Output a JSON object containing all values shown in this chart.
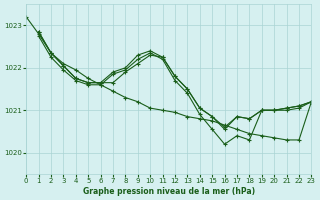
{
  "bg_color": "#d6f0f0",
  "grid_color": "#aad4d4",
  "line_color": "#1a5e1a",
  "xlabel": "Graphe pression niveau de la mer (hPa)",
  "xlim": [
    0,
    23
  ],
  "ylim": [
    1019.5,
    1023.5
  ],
  "yticks": [
    1020,
    1021,
    1022,
    1023
  ],
  "xticks": [
    0,
    1,
    2,
    3,
    4,
    5,
    6,
    7,
    8,
    9,
    10,
    11,
    12,
    13,
    14,
    15,
    16,
    17,
    18,
    19,
    20,
    21,
    22,
    23
  ],
  "series": [
    {
      "x": [
        0,
        1,
        2,
        3,
        4,
        5,
        6,
        7,
        8,
        9,
        10,
        11,
        12,
        13,
        14,
        15,
        16,
        17,
        18,
        19,
        20,
        21,
        22,
        23
      ],
      "y": [
        1023.2,
        1022.8,
        1022.35,
        1022.1,
        1021.95,
        1021.75,
        1021.6,
        1021.45,
        1021.3,
        1021.2,
        1021.05,
        1021.0,
        1020.95,
        1020.85,
        1020.8,
        1020.75,
        1020.65,
        1020.55,
        1020.45,
        1020.4,
        1020.35,
        1020.3,
        1020.3,
        1021.2
      ]
    },
    {
      "x": [
        1,
        2,
        3,
        4,
        5,
        6,
        7,
        8,
        9,
        10,
        11,
        12,
        13,
        14,
        15,
        16,
        17,
        18,
        19,
        20,
        21,
        22,
        23
      ],
      "y": [
        1022.85,
        1022.35,
        1022.05,
        1021.75,
        1021.65,
        1021.65,
        1021.65,
        1021.9,
        1022.1,
        1022.3,
        1022.25,
        1021.8,
        1021.5,
        1021.05,
        1020.85,
        1020.55,
        1020.85,
        1020.8,
        1021.0,
        1021.0,
        1021.05,
        1021.1,
        1021.2
      ]
    },
    {
      "x": [
        1,
        2,
        3,
        4,
        5,
        6,
        7,
        8,
        9,
        10,
        11,
        12,
        13,
        14,
        15,
        16,
        17,
        18,
        19,
        20,
        21,
        22,
        23
      ],
      "y": [
        1022.85,
        1022.35,
        1022.05,
        1021.75,
        1021.65,
        1021.65,
        1021.9,
        1022.0,
        1022.3,
        1022.4,
        1022.25,
        1021.8,
        1021.5,
        1021.05,
        1020.85,
        1020.6,
        1020.85,
        1020.8,
        1021.0,
        1021.0,
        1021.05,
        1021.1,
        1021.2
      ]
    },
    {
      "x": [
        1,
        2,
        3,
        4,
        5,
        6,
        7,
        8,
        9,
        10,
        11,
        12,
        13,
        14,
        15,
        16,
        17,
        18,
        19,
        20,
        21,
        22,
        23
      ],
      "y": [
        1022.75,
        1022.25,
        1021.95,
        1021.7,
        1021.6,
        1021.6,
        1021.85,
        1021.95,
        1022.2,
        1022.35,
        1022.2,
        1021.7,
        1021.4,
        1020.9,
        1020.55,
        1020.2,
        1020.4,
        1020.3,
        1021.0,
        1021.0,
        1021.0,
        1021.05,
        1021.2
      ]
    }
  ]
}
